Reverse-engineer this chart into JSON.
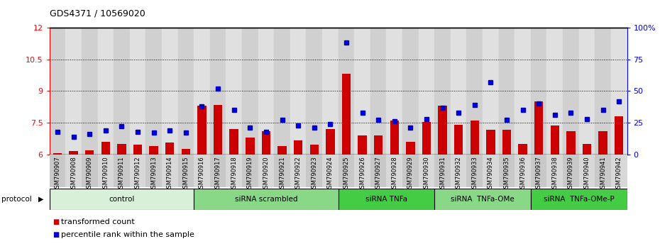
{
  "title": "GDS4371 / 10569020",
  "samples": [
    "GSM790907",
    "GSM790908",
    "GSM790909",
    "GSM790910",
    "GSM790911",
    "GSM790912",
    "GSM790913",
    "GSM790914",
    "GSM790915",
    "GSM790916",
    "GSM790917",
    "GSM790918",
    "GSM790919",
    "GSM790920",
    "GSM790921",
    "GSM790922",
    "GSM790923",
    "GSM790924",
    "GSM790925",
    "GSM790926",
    "GSM790927",
    "GSM790928",
    "GSM790929",
    "GSM790930",
    "GSM790931",
    "GSM790932",
    "GSM790933",
    "GSM790934",
    "GSM790935",
    "GSM790936",
    "GSM790937",
    "GSM790938",
    "GSM790939",
    "GSM790940",
    "GSM790941",
    "GSM790942"
  ],
  "red_bars": [
    6.05,
    6.15,
    6.2,
    6.6,
    6.5,
    6.45,
    6.4,
    6.55,
    6.25,
    8.3,
    8.35,
    7.2,
    6.8,
    7.1,
    6.4,
    6.65,
    6.45,
    7.2,
    9.8,
    6.9,
    6.9,
    7.6,
    6.6,
    7.55,
    8.3,
    7.4,
    7.6,
    7.15,
    7.15,
    6.5,
    8.5,
    7.35,
    7.1,
    6.5,
    7.1,
    7.8
  ],
  "blue_pct": [
    18,
    14,
    16,
    19,
    22,
    18,
    17,
    19,
    17,
    38,
    52,
    35,
    21,
    18,
    27,
    23,
    21,
    24,
    88,
    33,
    27,
    26,
    21,
    28,
    37,
    33,
    39,
    57,
    27,
    35,
    40,
    31,
    33,
    28,
    35,
    42
  ],
  "groups": [
    {
      "label": "control",
      "start": 0,
      "end": 9,
      "color": "#d8f0d8"
    },
    {
      "label": "siRNA scrambled",
      "start": 9,
      "end": 18,
      "color": "#88d888"
    },
    {
      "label": "siRNA TNFa",
      "start": 18,
      "end": 24,
      "color": "#44cc44"
    },
    {
      "label": "siRNA  TNFa-OMe",
      "start": 24,
      "end": 30,
      "color": "#88d888"
    },
    {
      "label": "siRNA  TNFa-OMe-P",
      "start": 30,
      "end": 36,
      "color": "#44cc44"
    }
  ],
  "ylim_left": [
    6.0,
    12.0
  ],
  "ylim_right": [
    0,
    100
  ],
  "yticks_left": [
    6.0,
    7.5,
    9.0,
    10.5,
    12.0
  ],
  "ytick_labels_left": [
    "6",
    "7.5",
    "9",
    "10.5",
    "12"
  ],
  "yticks_right": [
    0,
    25,
    50,
    75,
    100
  ],
  "ytick_labels_right": [
    "0",
    "25",
    "50",
    "75",
    "100%"
  ],
  "bar_color": "#cc0000",
  "dot_color": "#0000cc"
}
